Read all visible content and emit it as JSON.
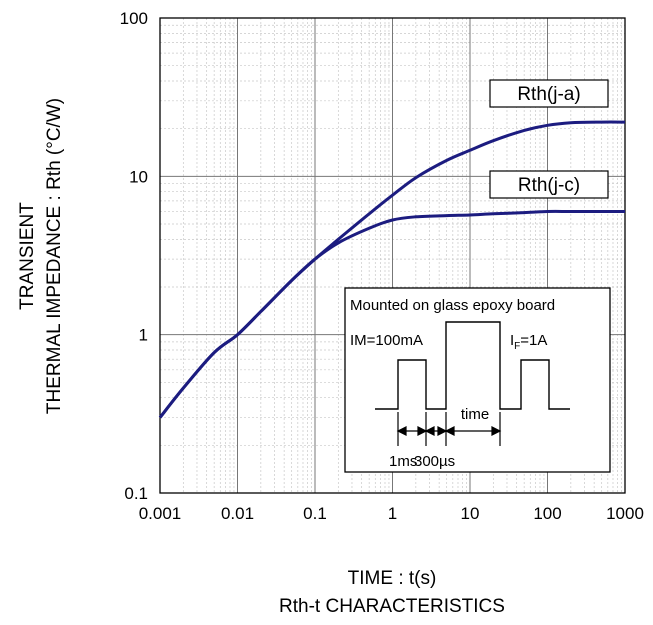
{
  "chart_data": {
    "type": "line",
    "xscale": "log",
    "yscale": "log",
    "xlim": [
      0.001,
      1000
    ],
    "ylim": [
      0.1,
      100
    ],
    "grid": true,
    "x_ticks": [
      "0.001",
      "0.01",
      "0.1",
      "1",
      "10",
      "100",
      "1000"
    ],
    "y_ticks": [
      "100",
      "10",
      "1",
      "0.1"
    ],
    "xlabel": "TIME : t(s)",
    "ylabel_line1": "TRANSIENT",
    "ylabel_line2": "THERMAL IMPEDANCE : Rth (°C/W)",
    "caption": "Rth-t CHARACTERISTICS",
    "line_color": "#1c1c80",
    "series": [
      {
        "name": "Rth(j-a)",
        "x": [
          0.001,
          0.002,
          0.005,
          0.01,
          0.02,
          0.05,
          0.1,
          0.2,
          0.5,
          1,
          2,
          5,
          10,
          20,
          50,
          100,
          200,
          500,
          1000
        ],
        "y": [
          0.3,
          0.46,
          0.77,
          1.0,
          1.4,
          2.2,
          3.0,
          4.0,
          5.8,
          7.6,
          9.8,
          12.6,
          14.6,
          16.8,
          19.5,
          21.0,
          21.8,
          22.0,
          22.0
        ]
      },
      {
        "name": "Rth(j-c)",
        "x": [
          0.001,
          0.002,
          0.005,
          0.01,
          0.02,
          0.05,
          0.1,
          0.2,
          0.5,
          1,
          2,
          5,
          10,
          20,
          50,
          100,
          200,
          500,
          1000
        ],
        "y": [
          0.3,
          0.46,
          0.77,
          1.0,
          1.4,
          2.2,
          3.0,
          3.8,
          4.7,
          5.3,
          5.55,
          5.65,
          5.7,
          5.8,
          5.9,
          6.0,
          6.0,
          6.0,
          6.0
        ]
      }
    ],
    "inset": {
      "title": "Mounted on glass epoxy board",
      "im_label": "IM=100mA",
      "if_label_main": "I",
      "if_label_sub": "F",
      "if_label_rest": "=1A",
      "time_label": "time",
      "pulse_label_1": "1ms",
      "pulse_label_2": "300µs"
    }
  }
}
